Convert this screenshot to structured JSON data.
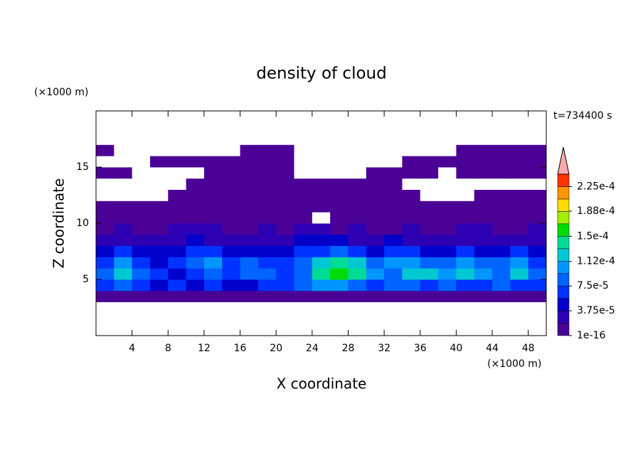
{
  "chart_data": {
    "type": "contour",
    "title": "density of cloud",
    "x_label": "X coordinate",
    "y_label": "Z coordinate",
    "x_unit": "(×1000 m)",
    "y_unit": "(×1000 m)",
    "time_label": "t=734400 s",
    "xlim": [
      0,
      50
    ],
    "ylim": [
      0,
      20
    ],
    "xticks": [
      4,
      8,
      12,
      16,
      20,
      24,
      28,
      32,
      36,
      40,
      44,
      48
    ],
    "yticks": [
      5,
      10,
      15
    ],
    "x": [
      1,
      3,
      5,
      7,
      9,
      11,
      13,
      15,
      17,
      19,
      21,
      23,
      25,
      27,
      29,
      31,
      33,
      35,
      37,
      39,
      41,
      43,
      45,
      47,
      49
    ],
    "y": [
      0.5,
      1.5,
      2.5,
      3.5,
      4.5,
      5.5,
      6.5,
      7.5,
      8.5,
      9.5,
      10.5,
      11.5,
      12.5,
      13.5,
      14.5,
      15.5,
      16.5,
      17.5,
      18.5,
      19.5
    ],
    "z": [
      [
        0,
        0,
        0,
        0,
        0,
        0,
        0,
        0,
        0,
        0,
        0,
        0,
        0,
        0,
        0,
        0,
        0,
        0,
        0,
        0,
        0,
        0,
        0,
        0,
        0
      ],
      [
        0,
        0,
        0,
        0,
        0,
        0,
        0,
        0,
        0,
        0,
        0,
        0,
        0,
        0,
        0,
        0,
        0,
        0,
        0,
        0,
        0,
        0,
        0,
        0,
        0
      ],
      [
        0,
        0,
        0,
        0,
        0,
        0,
        0,
        0,
        0,
        0,
        0,
        0,
        0,
        0,
        0,
        0,
        0,
        0,
        0,
        0,
        0,
        0,
        0,
        0,
        0
      ],
      [
        5e-06,
        5e-06,
        5e-06,
        5e-06,
        5e-06,
        5e-06,
        5e-06,
        5e-06,
        5e-06,
        5e-06,
        5e-06,
        5e-06,
        5e-06,
        5e-06,
        5e-06,
        5e-06,
        5e-06,
        5e-06,
        5e-06,
        5e-06,
        5e-06,
        5e-06,
        5e-06,
        5e-06,
        5e-06
      ],
      [
        6.5e-05,
        8.5e-05,
        6.5e-05,
        4.5e-05,
        6.5e-05,
        4.5e-05,
        6.5e-05,
        4.5e-05,
        4.5e-05,
        6.5e-05,
        6.5e-05,
        8.5e-05,
        0.0001,
        0.0001,
        8.5e-05,
        6.5e-05,
        8.5e-05,
        8.5e-05,
        6.5e-05,
        8.5e-05,
        6.5e-05,
        6.5e-05,
        8.5e-05,
        6.5e-05,
        6.5e-05
      ],
      [
        8.5e-05,
        0.00012,
        8.5e-05,
        6.5e-05,
        4.5e-05,
        6.5e-05,
        8.5e-05,
        6.5e-05,
        8.5e-05,
        8.5e-05,
        6.5e-05,
        8.5e-05,
        0.00014,
        0.00016,
        0.00014,
        0.0001,
        8.5e-05,
        0.00012,
        0.00012,
        0.0001,
        0.00012,
        0.0001,
        8.5e-05,
        0.00012,
        8.5e-05
      ],
      [
        6.5e-05,
        0.0001,
        6.5e-05,
        4.5e-05,
        6.5e-05,
        8.5e-05,
        0.0001,
        6.5e-05,
        8.5e-05,
        6.5e-05,
        6.5e-05,
        8.5e-05,
        0.00012,
        0.00014,
        0.00012,
        8.5e-05,
        0.0001,
        0.0001,
        8.5e-05,
        8.5e-05,
        0.0001,
        8.5e-05,
        8.5e-05,
        0.0001,
        6.5e-05
      ],
      [
        4.5e-05,
        6.5e-05,
        4.5e-05,
        4.5e-05,
        4.5e-05,
        6.5e-05,
        6.5e-05,
        4.5e-05,
        4.5e-05,
        4.5e-05,
        4.5e-05,
        6.5e-05,
        6.5e-05,
        8.5e-05,
        6.5e-05,
        4.5e-05,
        6.5e-05,
        6.5e-05,
        4.5e-05,
        4.5e-05,
        6.5e-05,
        4.5e-05,
        4.5e-05,
        6.5e-05,
        4.5e-05
      ],
      [
        2.5e-05,
        2.5e-05,
        2.5e-05,
        2.5e-05,
        2.5e-05,
        4.5e-05,
        2.5e-05,
        2.5e-05,
        2.5e-05,
        2.5e-05,
        2.5e-05,
        4.5e-05,
        4.5e-05,
        4.5e-05,
        2.5e-05,
        2.5e-05,
        4.5e-05,
        2.5e-05,
        2.5e-05,
        2.5e-05,
        2.5e-05,
        2.5e-05,
        2.5e-05,
        2.5e-05,
        2.5e-05
      ],
      [
        5e-06,
        2.5e-05,
        5e-06,
        5e-06,
        2.5e-05,
        2.5e-05,
        2.5e-05,
        5e-06,
        5e-06,
        2.5e-05,
        5e-06,
        2.5e-05,
        2.5e-05,
        5e-06,
        2.5e-05,
        5e-06,
        5e-06,
        2.5e-05,
        5e-06,
        5e-06,
        2.5e-05,
        2.5e-05,
        5e-06,
        5e-06,
        2.5e-05
      ],
      [
        5e-06,
        5e-06,
        5e-06,
        5e-06,
        5e-06,
        5e-06,
        5e-06,
        5e-06,
        5e-06,
        5e-06,
        5e-06,
        5e-06,
        0,
        5e-06,
        5e-06,
        5e-06,
        5e-06,
        5e-06,
        5e-06,
        5e-06,
        5e-06,
        5e-06,
        5e-06,
        5e-06,
        5e-06
      ],
      [
        5e-06,
        5e-06,
        5e-06,
        5e-06,
        5e-06,
        5e-06,
        5e-06,
        5e-06,
        5e-06,
        5e-06,
        5e-06,
        5e-06,
        5e-06,
        5e-06,
        5e-06,
        5e-06,
        5e-06,
        5e-06,
        5e-06,
        5e-06,
        5e-06,
        5e-06,
        5e-06,
        5e-06,
        5e-06
      ],
      [
        0,
        0,
        0,
        0,
        5e-06,
        5e-06,
        5e-06,
        5e-06,
        5e-06,
        5e-06,
        5e-06,
        5e-06,
        5e-06,
        5e-06,
        5e-06,
        5e-06,
        5e-06,
        5e-06,
        0,
        0,
        0,
        5e-06,
        5e-06,
        5e-06,
        5e-06
      ],
      [
        0,
        0,
        0,
        0,
        0,
        5e-06,
        5e-06,
        5e-06,
        5e-06,
        5e-06,
        5e-06,
        5e-06,
        5e-06,
        5e-06,
        5e-06,
        5e-06,
        5e-06,
        0,
        0,
        0,
        0,
        0,
        0,
        0,
        0
      ],
      [
        5e-06,
        5e-06,
        0,
        0,
        0,
        0,
        5e-06,
        5e-06,
        5e-06,
        5e-06,
        5e-06,
        0,
        0,
        0,
        0,
        5e-06,
        5e-06,
        5e-06,
        5e-06,
        0,
        5e-06,
        5e-06,
        5e-06,
        5e-06,
        5e-06
      ],
      [
        0,
        0,
        0,
        5e-06,
        5e-06,
        5e-06,
        5e-06,
        5e-06,
        5e-06,
        5e-06,
        5e-06,
        0,
        0,
        0,
        0,
        0,
        0,
        5e-06,
        5e-06,
        5e-06,
        5e-06,
        5e-06,
        5e-06,
        5e-06,
        5e-06
      ],
      [
        5e-06,
        0,
        0,
        0,
        0,
        0,
        0,
        0,
        5e-06,
        5e-06,
        5e-06,
        0,
        0,
        0,
        0,
        0,
        0,
        0,
        0,
        0,
        5e-06,
        5e-06,
        5e-06,
        5e-06,
        5e-06
      ],
      [
        0,
        0,
        0,
        0,
        0,
        0,
        0,
        0,
        0,
        0,
        0,
        0,
        0,
        0,
        0,
        0,
        0,
        0,
        0,
        0,
        0,
        0,
        0,
        0,
        0
      ],
      [
        0,
        0,
        0,
        0,
        0,
        0,
        0,
        0,
        0,
        0,
        0,
        0,
        0,
        0,
        0,
        0,
        0,
        0,
        0,
        0,
        0,
        0,
        0,
        0,
        0
      ],
      [
        0,
        0,
        0,
        0,
        0,
        0,
        0,
        0,
        0,
        0,
        0,
        0,
        0,
        0,
        0,
        0,
        0,
        0,
        0,
        0,
        0,
        0,
        0,
        0,
        0
      ]
    ],
    "levels": [
      1e-16,
      1.875e-05,
      3.75e-05,
      5.625e-05,
      7.5e-05,
      9.375e-05,
      0.0001125,
      0.00013125,
      0.00015,
      0.00016875,
      0.0001875,
      0.00020625,
      0.000225,
      0.00024375
    ],
    "level_colors": [
      "#4b0096",
      "#2d00b4",
      "#0000cd",
      "#0032ff",
      "#0064ff",
      "#0096ff",
      "#00c8d2",
      "#00dc96",
      "#00dc00",
      "#a0f000",
      "#ffdc00",
      "#ff9600",
      "#ff3200"
    ],
    "extend_color": "#ffaaaa",
    "colorbar_ticks": [
      1e-16,
      {
        "value": 3.75e-05,
        "label": "3.75e-5"
      },
      {
        "value": 7.5e-05,
        "label": "7.5e-5"
      },
      {
        "value": 0.000112,
        "label": "1.12e-4"
      },
      {
        "value": 0.00015,
        "label": "1.5e-4"
      },
      {
        "value": 0.000188,
        "label": "1.88e-4"
      },
      {
        "value": 0.000225,
        "label": "2.25e-4"
      }
    ]
  }
}
